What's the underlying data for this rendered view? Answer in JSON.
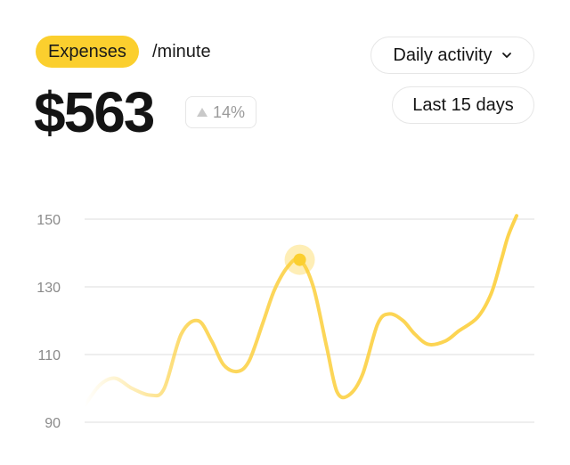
{
  "header": {
    "badge_label": "Expenses",
    "unit_label": "/minute",
    "amount": "$563",
    "change": "14%"
  },
  "controls": {
    "activity_label": "Daily activity",
    "range_label": "Last 15 days"
  },
  "colors": {
    "accent": "#fbcf2e",
    "line": "#fcd34d",
    "grid": "#e9e9e9"
  },
  "icons": {
    "change": "triangle-up-icon",
    "dropdown": "chevron-down-icon"
  },
  "chart_data": {
    "type": "line",
    "title": "",
    "xlabel": "",
    "ylabel": "",
    "ylim": [
      85,
      152
    ],
    "yticks": [
      150,
      130,
      110,
      90
    ],
    "grid": true,
    "highlight_index": 15,
    "series": [
      {
        "x": [
          0.5,
          1.4,
          2.3,
          3.3,
          4.4,
          5.2,
          6.2,
          7.2,
          8.0,
          8.7,
          9.5,
          10.2,
          11.0,
          11.7,
          12.5,
          13.2,
          14.0,
          14.8,
          15.4,
          16.1,
          16.9,
          17.8,
          18.5,
          19.3,
          20.0,
          20.8,
          21.8,
          22.6,
          23.7,
          24.5,
          25.1,
          25.5,
          26.0
        ],
        "y": [
          95,
          101,
          103,
          100,
          98,
          100,
          116,
          120,
          114,
          107,
          105,
          108,
          119,
          129,
          136,
          138,
          130,
          112,
          99,
          98,
          104,
          119,
          122,
          120,
          116,
          113,
          114,
          117,
          121,
          128,
          138,
          145,
          151
        ]
      }
    ]
  }
}
